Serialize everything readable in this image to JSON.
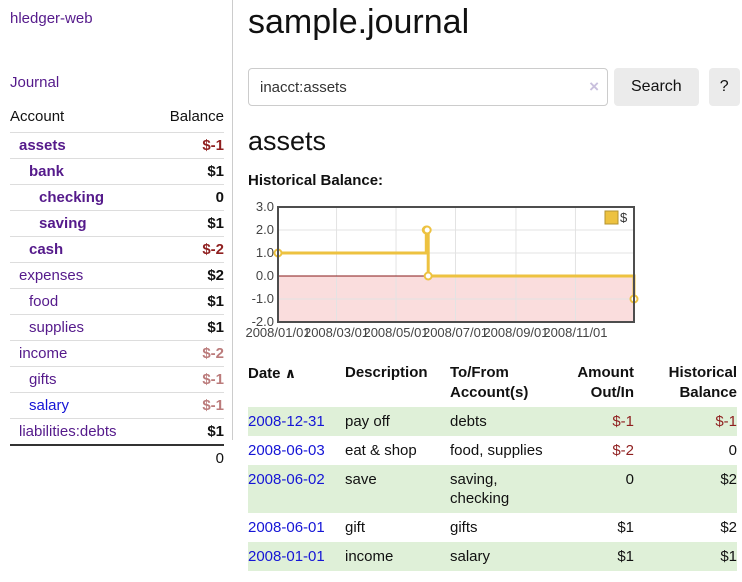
{
  "colors": {
    "link_purple": "#551a8b",
    "link_blue": "#1515d6",
    "negative": "#8f1f1f",
    "negative_muted": "#bb7b7b",
    "row_green": "#dff0d8",
    "chart_line": "#edc240",
    "chart_negative_region": "#fadddd",
    "chart_zero_line": "#871919",
    "chart_border": "#4d4d4d",
    "chart_grid": "#e3e3e3"
  },
  "sidebar": {
    "app_title": "hledger-web",
    "journal_link": "Journal",
    "accounts": {
      "header": {
        "account": "Account",
        "balance": "Balance"
      },
      "rows": [
        {
          "name": "assets",
          "balance": "$-1",
          "indent": 0,
          "bold": true,
          "balance_style": "negative",
          "link_color": "purple"
        },
        {
          "name": "bank",
          "balance": "$1",
          "indent": 1,
          "bold": true,
          "balance_style": "normal",
          "link_color": "purple"
        },
        {
          "name": "checking",
          "balance": "0",
          "indent": 2,
          "bold": true,
          "balance_style": "normal",
          "link_color": "purple"
        },
        {
          "name": "saving",
          "balance": "$1",
          "indent": 2,
          "bold": true,
          "balance_style": "normal",
          "link_color": "purple"
        },
        {
          "name": "cash",
          "balance": "$-2",
          "indent": 1,
          "bold": true,
          "balance_style": "negative",
          "link_color": "purple"
        },
        {
          "name": "expenses",
          "balance": "$2",
          "indent": 0,
          "bold": false,
          "balance_style": "normal",
          "link_color": "purple"
        },
        {
          "name": "food",
          "balance": "$1",
          "indent": 1,
          "bold": false,
          "balance_style": "normal",
          "link_color": "purple"
        },
        {
          "name": "supplies",
          "balance": "$1",
          "indent": 1,
          "bold": false,
          "balance_style": "normal",
          "link_color": "purple"
        },
        {
          "name": "income",
          "balance": "$-2",
          "indent": 0,
          "bold": false,
          "balance_style": "negative-muted",
          "link_color": "purple"
        },
        {
          "name": "gifts",
          "balance": "$-1",
          "indent": 1,
          "bold": false,
          "balance_style": "negative-muted",
          "link_color": "purple"
        },
        {
          "name": "salary",
          "balance": "$-1",
          "indent": 1,
          "bold": false,
          "balance_style": "negative-muted",
          "link_color": "blue"
        },
        {
          "name": "liabilities:debts",
          "balance": "$1",
          "indent": 0,
          "bold": false,
          "balance_style": "normal",
          "link_color": "purple"
        }
      ],
      "total": "0"
    }
  },
  "main": {
    "title": "sample.journal",
    "search": {
      "value": "inacct:assets",
      "clear": "×",
      "button": "Search",
      "help": "?"
    },
    "account_heading": "assets",
    "chart_title": "Historical Balance:"
  },
  "chart_data": {
    "type": "line",
    "step": true,
    "title": "Historical Balance:",
    "series": [
      {
        "name": "$",
        "points": [
          [
            "2008-01-01",
            1
          ],
          [
            "2008-06-01",
            2
          ],
          [
            "2008-06-02",
            2
          ],
          [
            "2008-06-03",
            0
          ],
          [
            "2008-12-31",
            -1
          ]
        ]
      }
    ],
    "ylim": [
      -2,
      3
    ],
    "y_tick_labels": [
      "3.0",
      "2.0",
      "1.0",
      "0.0",
      "-1.0",
      "-2.0"
    ],
    "x_tick_labels": [
      "2008/01/01",
      "2008/03/01",
      "2008/05/01",
      "2008/07/01",
      "2008/09/01",
      "2008/11/01"
    ],
    "x_range": [
      "2008-01-01",
      "2008-12-31"
    ],
    "grid": true,
    "legend": {
      "label": "$",
      "position": "top-right"
    },
    "negative_region_shaded": true
  },
  "register": {
    "headers": {
      "date": "Date",
      "sort_icon": "∧",
      "description": "Description",
      "accounts": "To/From Account(s)",
      "amount": "Amount Out/In",
      "balance": "Historical Balance"
    },
    "rows": [
      {
        "date": "2008-12-31",
        "description": "pay off",
        "accounts": "debts",
        "amount": "$-1",
        "amount_style": "negative",
        "balance": "$-1",
        "balance_style": "negative",
        "green": true
      },
      {
        "date": "2008-06-03",
        "description": "eat & shop",
        "accounts": "food, supplies",
        "amount": "$-2",
        "amount_style": "negative",
        "balance": "0",
        "balance_style": "normal",
        "green": false
      },
      {
        "date": "2008-06-02",
        "description": "save",
        "accounts": "saving, checking",
        "amount": "0",
        "amount_style": "normal",
        "balance": "$2",
        "balance_style": "normal",
        "green": true
      },
      {
        "date": "2008-06-01",
        "description": "gift",
        "accounts": "gifts",
        "amount": "$1",
        "amount_style": "normal",
        "balance": "$2",
        "balance_style": "normal",
        "green": false
      },
      {
        "date": "2008-01-01",
        "description": "income",
        "accounts": "salary",
        "amount": "$1",
        "amount_style": "normal",
        "balance": "$1",
        "balance_style": "normal",
        "green": true
      }
    ]
  }
}
